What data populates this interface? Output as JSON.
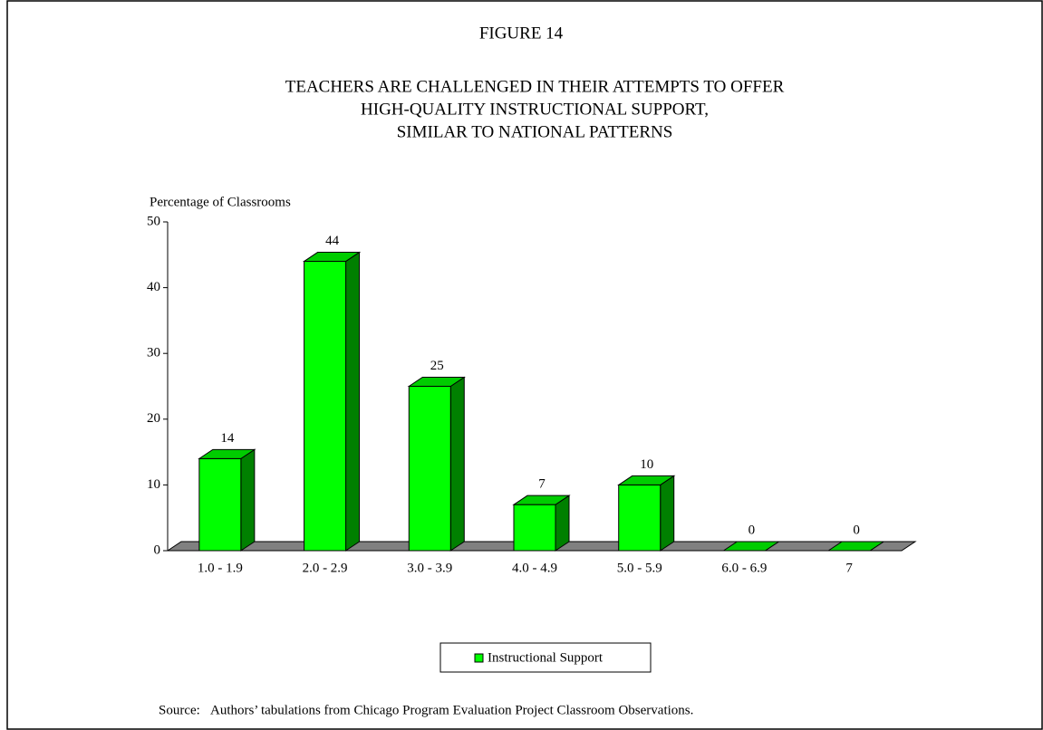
{
  "chart_data": {
    "type": "bar3d",
    "figure_label": "FIGURE 14",
    "title": [
      "TEACHERS ARE CHALLENGED IN THEIR ATTEMPTS TO OFFER",
      "HIGH-QUALITY INSTRUCTIONAL SUPPORT,",
      "SIMILAR TO NATIONAL PATTERNS"
    ],
    "y_label": "Percentage of Classrooms",
    "categories": [
      "1.0 - 1.9",
      "2.0 - 2.9",
      "3.0 - 3.9",
      "4.0 - 4.9",
      "5.0 - 5.9",
      "6.0 - 6.9",
      "7"
    ],
    "series": [
      {
        "name": "Instructional Support",
        "color": "#00ff00",
        "values": [
          14,
          44,
          25,
          7,
          10,
          0,
          0
        ]
      }
    ],
    "ylim": [
      0,
      50
    ],
    "yticks": [
      0,
      10,
      20,
      30,
      40,
      50
    ],
    "source_label": "Source:",
    "source": "Authors’ tabulations from Chicago Program Evaluation Project Classroom Observations."
  }
}
